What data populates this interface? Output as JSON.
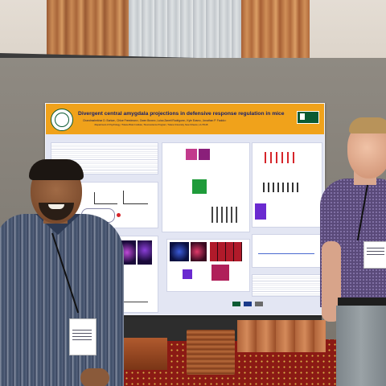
{
  "poster": {
    "title": "Divergent central amygdala projections in defensive response regulation in mice",
    "authors": "Chandrashekhar D. Borkar¹, Chloe Freedman¹², Owen Brown¹, Luisa Zaneti Rodriguez¹, Kyle Evans¹, Jonathan P. Fadok¹²",
    "affiliation": "¹Department of Psychology, ²Tulane Brain Institute, ³Neuroscience Program, Tulane University, New Orleans, LA 70118",
    "colors": {
      "banner": "#f0a21b",
      "poster_bg": "#e3e6f3",
      "tulane_green": "#0b5a33"
    }
  }
}
